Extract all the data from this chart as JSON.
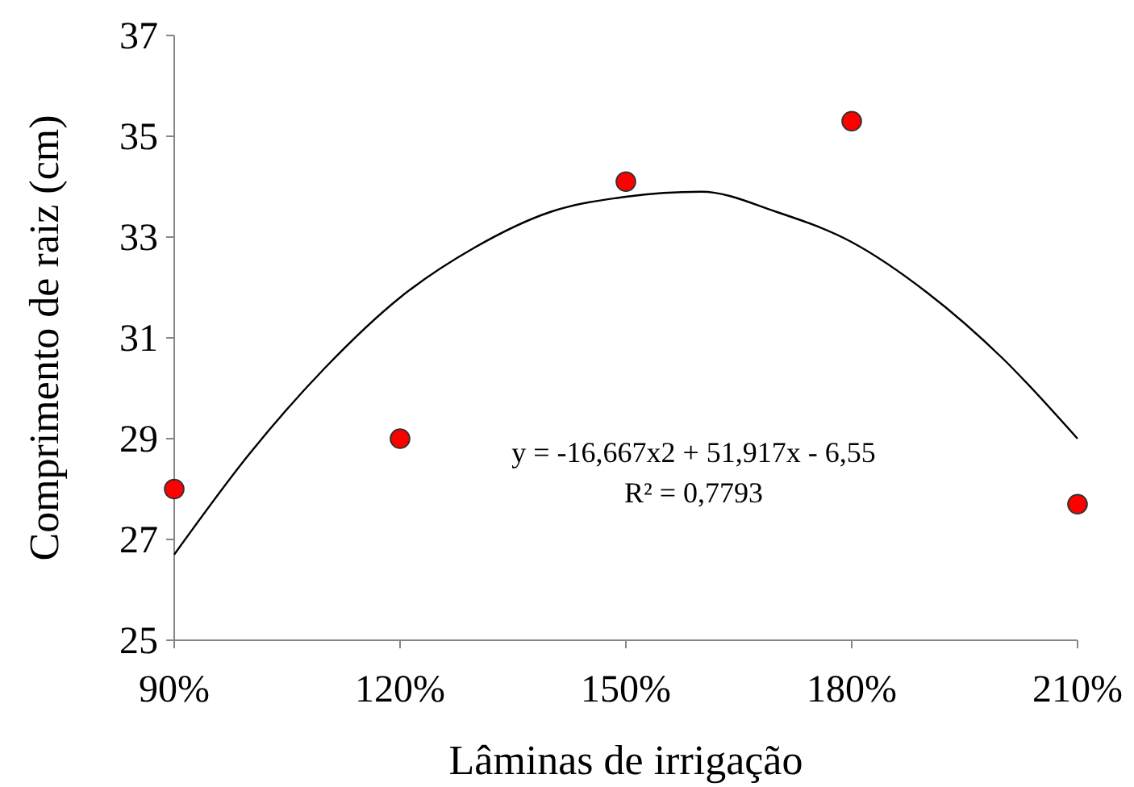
{
  "chart_data": {
    "type": "scatter",
    "xlabel": "Lâminas de irrigação",
    "ylabel": "Comprimento de raiz (cm)",
    "xlim": [
      0.9,
      2.1
    ],
    "xticks": [
      {
        "value": 0.9,
        "label": "90%"
      },
      {
        "value": 1.2,
        "label": "120%"
      },
      {
        "value": 1.5,
        "label": "150%"
      },
      {
        "value": 1.8,
        "label": "180%"
      },
      {
        "value": 2.1,
        "label": "210%"
      }
    ],
    "ylim": [
      25,
      37
    ],
    "yticks": [
      25,
      27,
      29,
      31,
      33,
      35,
      37
    ],
    "grid": false,
    "marker": "circle",
    "series": [
      {
        "color": "#ff0000",
        "x": [
          0.9,
          1.2,
          1.5,
          1.8,
          2.1
        ],
        "values": [
          28.0,
          29.0,
          34.1,
          35.3,
          27.7
        ]
      },
      {
        "type": "line",
        "color": "#000000",
        "marker": "none",
        "line_style": "solid",
        "x": [
          0.9,
          1.0,
          1.1,
          1.2,
          1.3,
          1.4,
          1.5,
          1.6,
          1.7,
          1.8,
          1.9,
          2.0,
          2.1
        ],
        "values": [
          26.7,
          28.7,
          30.4,
          31.8,
          32.8,
          33.5,
          33.8,
          33.9,
          33.5,
          32.9,
          31.9,
          30.6,
          29.0
        ]
      }
    ],
    "annotations": [
      "y = -16,667x2 + 51,917x - 6,55",
      "R² = 0,7793"
    ]
  }
}
